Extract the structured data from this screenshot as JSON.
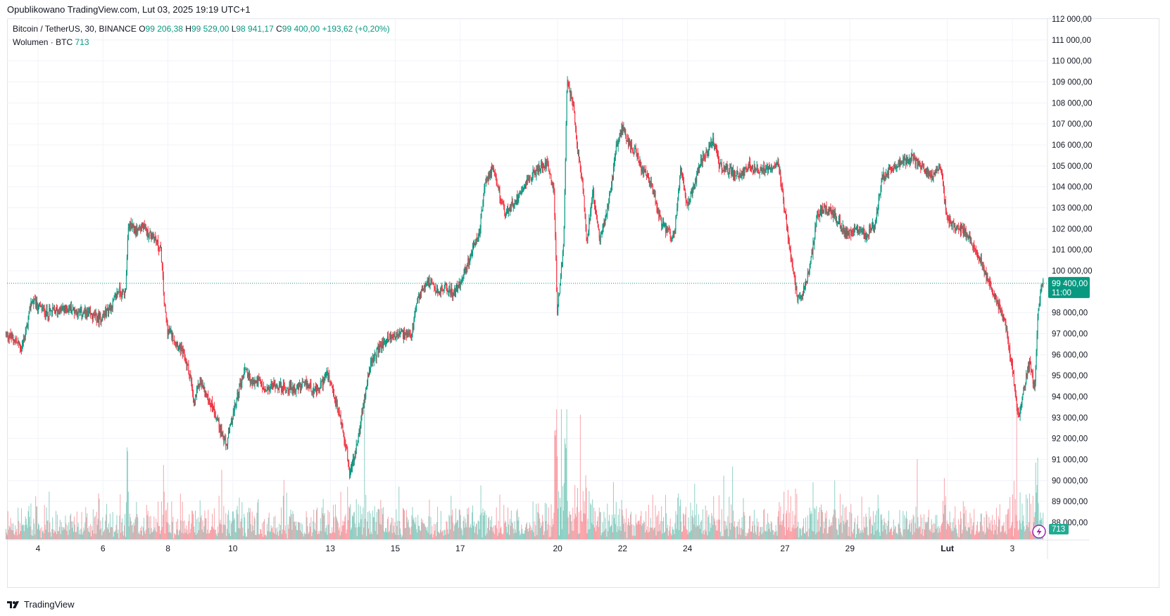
{
  "header": {
    "published": "Opublikowano TradingView.com, Lut 03, 2025 19:19 UTC+1"
  },
  "legend": {
    "symbol": "Bitcoin / TetherUS, 30, BINANCE",
    "o_label": "O",
    "o_value": "99 206,38",
    "h_label": "H",
    "h_value": "99 529,00",
    "l_label": "L",
    "l_value": "98 941,17",
    "c_label": "C",
    "c_value": "99 400,00",
    "change": "+193,62 (+0,20%)",
    "volume_label": "Wolumen · BTC",
    "volume_value": "713"
  },
  "price_badge": {
    "price": "99 400,00",
    "countdown": "11:00"
  },
  "volume_badge": "713",
  "footer": {
    "brand": "TradingView"
  },
  "colors": {
    "up": "#089981",
    "down": "#f23645",
    "grid": "#f0f3fa",
    "axis_text": "#131722",
    "badge_bg": "#089981"
  },
  "chart_data": {
    "type": "candlestick",
    "symbol": "Bitcoin / TetherUS",
    "interval": "30",
    "exchange": "BINANCE",
    "last_price": 99400,
    "y_ticks": [
      "88 000,00",
      "89 000,00",
      "90 000,00",
      "91 000,00",
      "92 000,00",
      "93 000,00",
      "94 000,00",
      "95 000,00",
      "96 000,00",
      "97 000,00",
      "98 000,00",
      "100 000,00",
      "101 000,00",
      "102 000,00",
      "103 000,00",
      "104 000,00",
      "105 000,00",
      "106 000,00",
      "107 000,00",
      "108 000,00",
      "109 000,00",
      "110 000,00",
      "111 000,00",
      "112 000,00"
    ],
    "ylim": [
      87200,
      112200
    ],
    "x_ticks": [
      {
        "label": "4",
        "day": 4
      },
      {
        "label": "6",
        "day": 6
      },
      {
        "label": "8",
        "day": 8
      },
      {
        "label": "10",
        "day": 10
      },
      {
        "label": "13",
        "day": 13
      },
      {
        "label": "15",
        "day": 15
      },
      {
        "label": "17",
        "day": 17
      },
      {
        "label": "20",
        "day": 20
      },
      {
        "label": "22",
        "day": 22
      },
      {
        "label": "24",
        "day": 24
      },
      {
        "label": "27",
        "day": 27
      },
      {
        "label": "29",
        "day": 29
      },
      {
        "label": "Lut",
        "day": 32
      },
      {
        "label": "3",
        "day": 34
      }
    ],
    "price_path": [
      [
        3.0,
        97000
      ],
      [
        3.3,
        96700
      ],
      [
        3.5,
        96300
      ],
      [
        3.7,
        97500
      ],
      [
        3.8,
        98600
      ],
      [
        4.0,
        98300
      ],
      [
        4.3,
        98000
      ],
      [
        4.6,
        98100
      ],
      [
        5.0,
        98200
      ],
      [
        5.3,
        98000
      ],
      [
        5.6,
        97900
      ],
      [
        5.9,
        97700
      ],
      [
        6.1,
        98000
      ],
      [
        6.3,
        98400
      ],
      [
        6.5,
        99100
      ],
      [
        6.6,
        98900
      ],
      [
        6.7,
        99000
      ],
      [
        6.8,
        102200
      ],
      [
        7.0,
        101900
      ],
      [
        7.2,
        102100
      ],
      [
        7.4,
        101800
      ],
      [
        7.6,
        101600
      ],
      [
        7.8,
        100900
      ],
      [
        7.9,
        98400
      ],
      [
        8.0,
        97200
      ],
      [
        8.2,
        96800
      ],
      [
        8.5,
        96000
      ],
      [
        8.7,
        95000
      ],
      [
        8.8,
        93600
      ],
      [
        9.0,
        94800
      ],
      [
        9.2,
        94000
      ],
      [
        9.4,
        93500
      ],
      [
        9.6,
        92600
      ],
      [
        9.8,
        91600
      ],
      [
        10.0,
        93000
      ],
      [
        10.2,
        94400
      ],
      [
        10.4,
        95400
      ],
      [
        10.6,
        94600
      ],
      [
        10.8,
        94800
      ],
      [
        11.0,
        94200
      ],
      [
        11.3,
        94600
      ],
      [
        11.6,
        94400
      ],
      [
        12.0,
        94400
      ],
      [
        12.3,
        94600
      ],
      [
        12.6,
        94200
      ],
      [
        12.9,
        95100
      ],
      [
        13.1,
        94100
      ],
      [
        13.3,
        93100
      ],
      [
        13.5,
        91600
      ],
      [
        13.6,
        90300
      ],
      [
        13.8,
        91400
      ],
      [
        14.0,
        93300
      ],
      [
        14.2,
        95300
      ],
      [
        14.5,
        96300
      ],
      [
        14.8,
        96800
      ],
      [
        15.2,
        97000
      ],
      [
        15.5,
        96800
      ],
      [
        15.7,
        98600
      ],
      [
        16.0,
        99600
      ],
      [
        16.3,
        99000
      ],
      [
        16.6,
        99200
      ],
      [
        16.8,
        98900
      ],
      [
        17.0,
        99400
      ],
      [
        17.3,
        100600
      ],
      [
        17.6,
        101800
      ],
      [
        17.8,
        104400
      ],
      [
        18.0,
        104800
      ],
      [
        18.2,
        103800
      ],
      [
        18.4,
        102700
      ],
      [
        18.7,
        103300
      ],
      [
        19.0,
        104200
      ],
      [
        19.4,
        104800
      ],
      [
        19.7,
        105200
      ],
      [
        19.9,
        103700
      ],
      [
        20.0,
        97900
      ],
      [
        20.2,
        101500
      ],
      [
        20.3,
        109000
      ],
      [
        20.5,
        107800
      ],
      [
        20.6,
        106000
      ],
      [
        20.8,
        104000
      ],
      [
        20.9,
        101400
      ],
      [
        21.1,
        103800
      ],
      [
        21.3,
        101400
      ],
      [
        21.5,
        102600
      ],
      [
        21.7,
        104400
      ],
      [
        21.8,
        105800
      ],
      [
        22.0,
        106800
      ],
      [
        22.2,
        106100
      ],
      [
        22.4,
        105700
      ],
      [
        22.6,
        104800
      ],
      [
        22.8,
        104400
      ],
      [
        23.0,
        103500
      ],
      [
        23.2,
        102200
      ],
      [
        23.4,
        101800
      ],
      [
        23.6,
        101600
      ],
      [
        23.8,
        104800
      ],
      [
        24.0,
        103200
      ],
      [
        24.2,
        104000
      ],
      [
        24.4,
        105200
      ],
      [
        24.6,
        105600
      ],
      [
        24.8,
        106200
      ],
      [
        25.0,
        105000
      ],
      [
        25.3,
        104800
      ],
      [
        25.6,
        104500
      ],
      [
        25.9,
        105000
      ],
      [
        26.2,
        104800
      ],
      [
        26.5,
        104900
      ],
      [
        26.8,
        105200
      ],
      [
        27.0,
        102900
      ],
      [
        27.2,
        100500
      ],
      [
        27.4,
        98600
      ],
      [
        27.6,
        99100
      ],
      [
        27.8,
        100300
      ],
      [
        28.0,
        102700
      ],
      [
        28.3,
        103000
      ],
      [
        28.6,
        102500
      ],
      [
        28.9,
        101700
      ],
      [
        29.2,
        102100
      ],
      [
        29.5,
        101700
      ],
      [
        29.8,
        102300
      ],
      [
        30.0,
        104400
      ],
      [
        30.3,
        104900
      ],
      [
        30.6,
        105200
      ],
      [
        30.9,
        105400
      ],
      [
        31.2,
        105000
      ],
      [
        31.5,
        104500
      ],
      [
        31.8,
        105000
      ],
      [
        32.0,
        102500
      ],
      [
        32.3,
        102000
      ],
      [
        32.6,
        101800
      ],
      [
        32.9,
        101000
      ],
      [
        33.2,
        99800
      ],
      [
        33.4,
        99000
      ],
      [
        33.6,
        98300
      ],
      [
        33.8,
        97500
      ],
      [
        34.0,
        95400
      ],
      [
        34.2,
        93000
      ],
      [
        34.4,
        94600
      ],
      [
        34.55,
        95700
      ],
      [
        34.7,
        94200
      ],
      [
        34.8,
        98200
      ],
      [
        34.95,
        99400
      ]
    ],
    "volume_scale_max": 5000
  }
}
